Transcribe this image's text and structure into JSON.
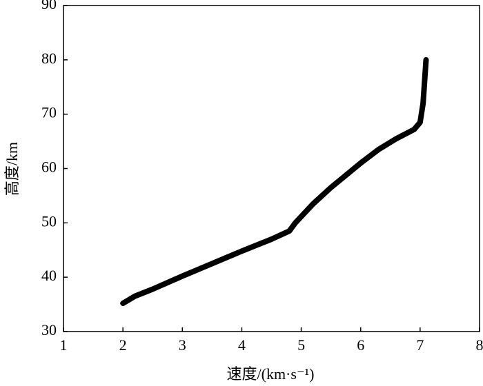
{
  "chart_data": {
    "type": "line",
    "x_label": "速度/(km·s⁻¹)",
    "y_label": "高度/km",
    "x": [
      2.0,
      2.2,
      2.5,
      3.0,
      3.5,
      4.0,
      4.5,
      4.8,
      4.9,
      5.2,
      5.5,
      6.0,
      6.3,
      6.6,
      6.9,
      7.0,
      7.05,
      7.1
    ],
    "values": [
      35.2,
      36.5,
      37.8,
      40.2,
      42.5,
      44.8,
      47.0,
      48.5,
      50.0,
      53.5,
      56.5,
      61.0,
      63.5,
      65.5,
      67.2,
      68.5,
      72.0,
      80.0
    ],
    "color": "#000000",
    "xlim": [
      1,
      8
    ],
    "xticks": [
      1,
      2,
      3,
      4,
      5,
      6,
      7,
      8
    ],
    "ylim": [
      30,
      90
    ],
    "yticks": [
      30,
      40,
      50,
      60,
      70,
      80,
      90
    ],
    "grid": false
  }
}
